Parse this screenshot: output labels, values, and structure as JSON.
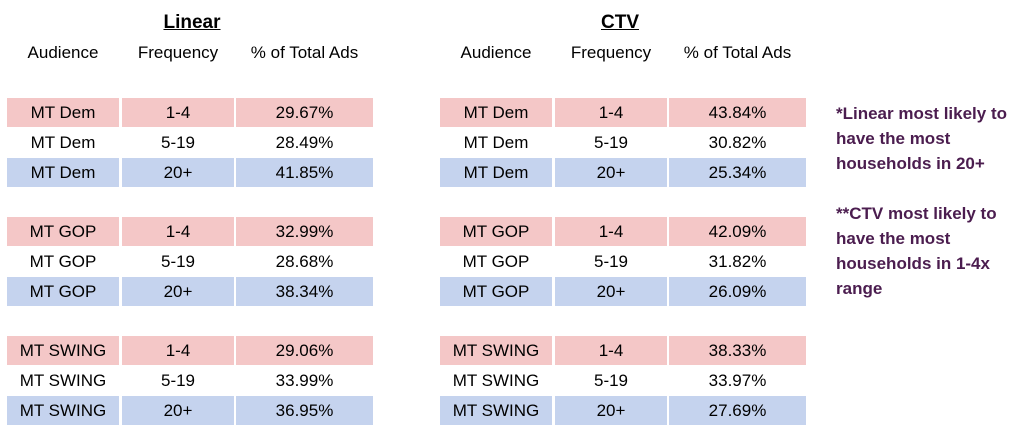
{
  "linear": {
    "title": "Linear",
    "headers": [
      "Audience",
      "Frequency",
      "% of Total Ads"
    ],
    "rows": [
      {
        "audience": "MT Dem",
        "frequency": "1-4",
        "pct": "29.67%"
      },
      {
        "audience": "MT Dem",
        "frequency": "5-19",
        "pct": "28.49%"
      },
      {
        "audience": "MT Dem",
        "frequency": "20+",
        "pct": "41.85%"
      },
      {
        "audience": "MT GOP",
        "frequency": "1-4",
        "pct": "32.99%"
      },
      {
        "audience": "MT GOP",
        "frequency": "5-19",
        "pct": "28.68%"
      },
      {
        "audience": "MT GOP",
        "frequency": "20+",
        "pct": "38.34%"
      },
      {
        "audience": "MT SWING",
        "frequency": "1-4",
        "pct": "29.06%"
      },
      {
        "audience": "MT SWING",
        "frequency": "5-19",
        "pct": "33.99%"
      },
      {
        "audience": "MT SWING",
        "frequency": "20+",
        "pct": "36.95%"
      }
    ]
  },
  "ctv": {
    "title": "CTV",
    "headers": [
      "Audience",
      "Frequency",
      "% of Total Ads"
    ],
    "rows": [
      {
        "audience": "MT Dem",
        "frequency": "1-4",
        "pct": "43.84%"
      },
      {
        "audience": "MT Dem",
        "frequency": "5-19",
        "pct": "30.82%"
      },
      {
        "audience": "MT Dem",
        "frequency": "20+",
        "pct": "25.34%"
      },
      {
        "audience": "MT GOP",
        "frequency": "1-4",
        "pct": "42.09%"
      },
      {
        "audience": "MT GOP",
        "frequency": "5-19",
        "pct": "31.82%"
      },
      {
        "audience": "MT GOP",
        "frequency": "20+",
        "pct": "26.09%"
      },
      {
        "audience": "MT SWING",
        "frequency": "1-4",
        "pct": "38.33%"
      },
      {
        "audience": "MT SWING",
        "frequency": "5-19",
        "pct": "33.97%"
      },
      {
        "audience": "MT SWING",
        "frequency": "20+",
        "pct": "27.69%"
      }
    ]
  },
  "notes": {
    "note1": "*Linear most likely to have the most households in 20+",
    "note2": "**CTV most likely to have the most households in 1-4x range"
  },
  "colors": {
    "row_1_4": "#f4c7c7",
    "row_5_19": "#ffffff",
    "row_20_plus": "#c5d3ee",
    "note_text": "#4b1d4f"
  }
}
